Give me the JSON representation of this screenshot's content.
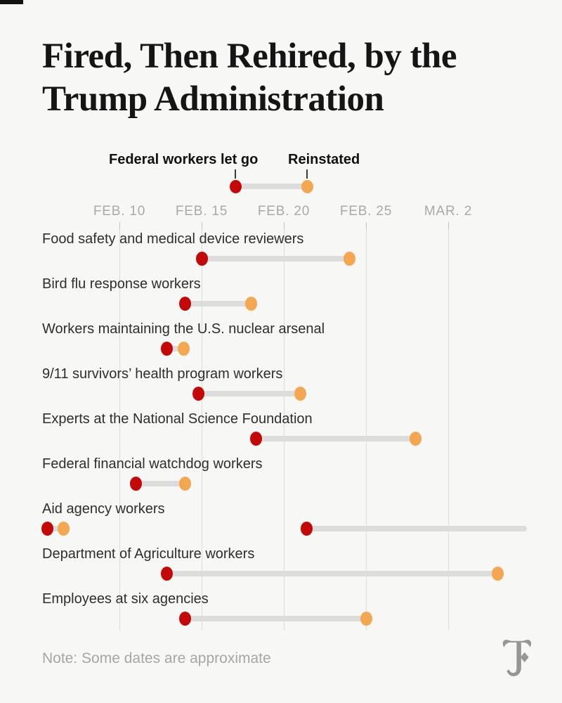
{
  "title": {
    "line1": "Fired, Then Rehired, by the",
    "line2": "Trump Administration"
  },
  "legend": {
    "fired_label": "Federal workers let go",
    "reinstated_label": "Reinstated"
  },
  "note": "Note: Some dates are approximate",
  "logo": {
    "name": "new-york-times-t-logo"
  },
  "colors": {
    "background": "#f7f7f5",
    "fired": "#c40707",
    "reinstated": "#f4a750",
    "bar": "#dcdcdc",
    "grid": "#dcdcda",
    "axis_text": "#a9a9a7",
    "label_text": "#2e2e2e",
    "note_text": "#a6a6a4",
    "logo_gray": "#969696"
  },
  "chart_data": {
    "type": "dumbbell-range-timeline",
    "title": "Fired, Then Rehired, by the Trump Administration",
    "legend": [
      "Federal workers let go",
      "Reinstated"
    ],
    "x_axis": {
      "tick_labels": [
        "FEB. 10",
        "FEB. 15",
        "FEB. 20",
        "FEB. 25",
        "MAR. 2"
      ],
      "tick_days": [
        10,
        15,
        20,
        25,
        30
      ],
      "day_scale": "February 2025 day number; March dates continue the count (Mar. 2 = 30)",
      "grid": true
    },
    "rows": [
      {
        "label": "Food safety and medical device reviewers",
        "segments": [
          {
            "fired": {
              "day": 15,
              "date": "Feb. 15"
            },
            "reinstated": {
              "day": 24,
              "date": "Feb. 24"
            }
          }
        ]
      },
      {
        "label": "Bird flu response workers",
        "segments": [
          {
            "fired": {
              "day": 14,
              "date": "Feb. 14"
            },
            "reinstated": {
              "day": 18,
              "date": "Feb. 18"
            }
          }
        ]
      },
      {
        "label": "Workers maintaining the U.S. nuclear arsenal",
        "segments": [
          {
            "fired": {
              "day": 12.9,
              "date": "Feb. 13"
            },
            "reinstated": {
              "day": 13.9,
              "date": "Feb. 14"
            }
          }
        ]
      },
      {
        "label": "9/11 survivors’ health program workers",
        "segments": [
          {
            "fired": {
              "day": 14.8,
              "date": "Feb. 15"
            },
            "reinstated": {
              "day": 21,
              "date": "Feb. 21"
            }
          }
        ]
      },
      {
        "label": "Experts at the National Science Foundation",
        "segments": [
          {
            "fired": {
              "day": 18.3,
              "date": "Feb. 18"
            },
            "reinstated": {
              "day": 28,
              "date": "Feb. 28"
            }
          }
        ]
      },
      {
        "label": "Federal financial watchdog workers",
        "segments": [
          {
            "fired": {
              "day": 11,
              "date": "Feb. 11"
            },
            "reinstated": {
              "day": 14,
              "date": "Feb. 14"
            }
          }
        ]
      },
      {
        "label": "Aid agency workers",
        "segments": [
          {
            "fired": {
              "day": 5.6,
              "date": "Feb. 6"
            },
            "reinstated": {
              "day": 6.6,
              "date": "Feb. 7"
            }
          },
          {
            "fired": {
              "day": 21.4,
              "date": "Feb. 21"
            },
            "reinstated": null,
            "bar_end_day": 34.8,
            "bar_note": "bar runs off right edge of chart, no reinstated dot shown"
          }
        ]
      },
      {
        "label": "Department of Agriculture workers",
        "segments": [
          {
            "fired": {
              "day": 12.9,
              "date": "Feb. 13"
            },
            "reinstated": {
              "day": 33,
              "date": "Mar. 5"
            }
          }
        ]
      },
      {
        "label": "Employees at six agencies",
        "segments": [
          {
            "fired": {
              "day": 14,
              "date": "Feb. 14"
            },
            "reinstated": {
              "day": 25,
              "date": "Feb. 25"
            }
          }
        ]
      }
    ]
  }
}
